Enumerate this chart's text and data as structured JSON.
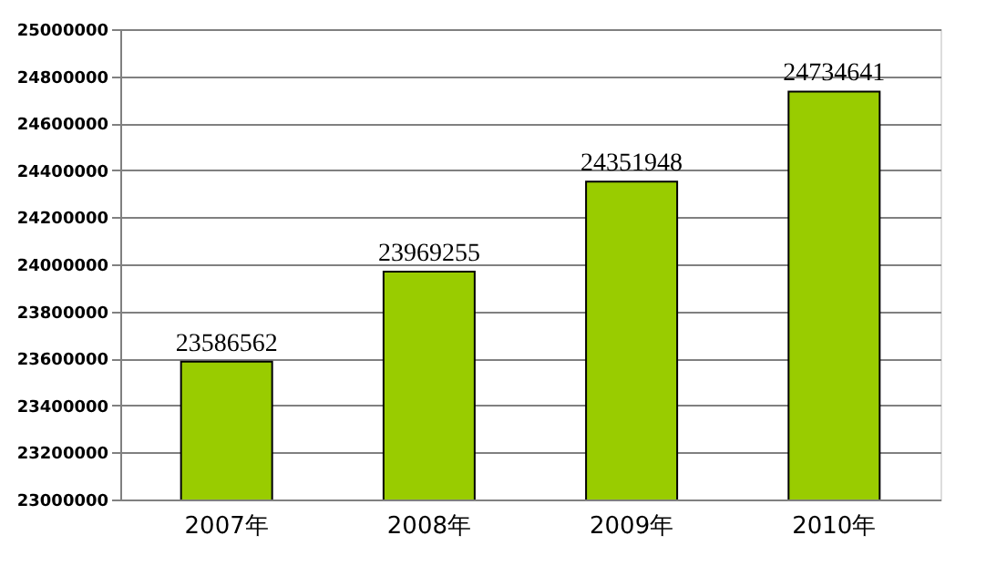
{
  "chart_data": {
    "type": "bar",
    "categories": [
      "2007年",
      "2008年",
      "2009年",
      "2010年"
    ],
    "values": [
      23586562,
      23969255,
      24351948,
      24734641
    ],
    "color": "#99cc00",
    "ylim": [
      23000000,
      25000000
    ],
    "yticks": [
      23000000,
      23200000,
      23400000,
      23600000,
      23800000,
      24000000,
      24200000,
      24400000,
      24600000,
      24800000,
      25000000
    ],
    "grid": "y",
    "data_labels": true
  }
}
